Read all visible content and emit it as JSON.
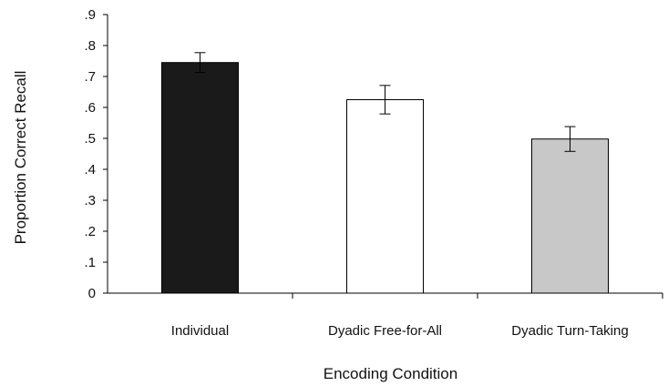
{
  "chart_data": {
    "type": "bar",
    "title": "",
    "xlabel": "Encoding Condition",
    "ylabel": "Proportion Correct Recall",
    "ylim": [
      0,
      0.9
    ],
    "y_ticks": [
      0,
      0.1,
      0.2,
      0.3,
      0.4,
      0.5,
      0.6,
      0.7,
      0.8,
      0.9
    ],
    "y_tick_labels": [
      "0",
      ".1",
      ".2",
      ".3",
      ".4",
      ".5",
      ".6",
      ".7",
      ".8",
      ".9"
    ],
    "categories": [
      "Individual",
      "Dyadic Free-for-All",
      "Dyadic Turn-Taking"
    ],
    "values": [
      0.745,
      0.625,
      0.498
    ],
    "error_bars": [
      0.032,
      0.046,
      0.04
    ],
    "bar_colors": [
      "#1a1a1a",
      "#ffffff",
      "#c8c8c8"
    ],
    "grid": false,
    "legend": "none"
  }
}
